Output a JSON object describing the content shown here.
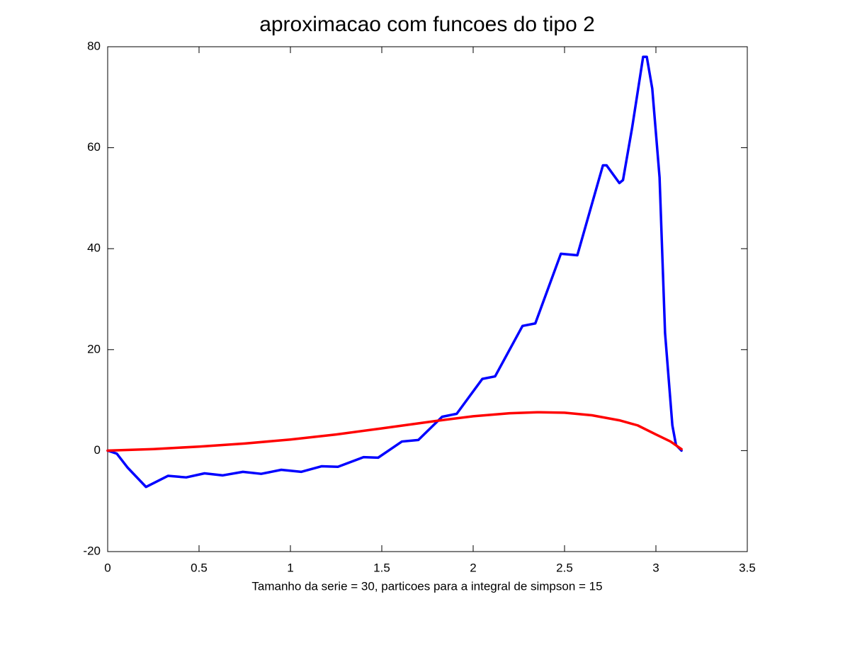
{
  "chart_data": {
    "type": "line",
    "title": "aproximacao com funcoes do tipo 2",
    "xlabel": "Tamanho da serie = 30, particoes para a integral de simpson = 15",
    "xlim": [
      0,
      3.5
    ],
    "xticks": [
      0,
      0.5,
      1,
      1.5,
      2,
      2.5,
      3,
      3.5
    ],
    "ylim": [
      -20,
      80
    ],
    "yticks": [
      -20,
      0,
      20,
      40,
      60,
      80
    ],
    "series": [
      {
        "color": "#0000ff",
        "x": [
          0,
          0.05,
          0.11,
          0.21,
          0.33,
          0.43,
          0.53,
          0.63,
          0.74,
          0.84,
          0.95,
          1.06,
          1.17,
          1.26,
          1.4,
          1.48,
          1.61,
          1.7,
          1.83,
          1.91,
          2.05,
          2.12,
          2.27,
          2.34,
          2.48,
          2.57,
          2.71,
          2.73,
          2.8,
          2.82,
          2.87,
          2.93,
          2.95,
          2.98,
          3.02,
          3.05,
          3.09,
          3.11,
          3.14
        ],
        "values": [
          0,
          -0.6,
          -3.4,
          -7.2,
          -5.0,
          -5.3,
          -4.5,
          -4.9,
          -4.2,
          -4.6,
          -3.8,
          -4.2,
          -3.1,
          -3.2,
          -1.3,
          -1.4,
          1.8,
          2.1,
          6.7,
          7.3,
          14.2,
          14.7,
          24.7,
          25.2,
          39.0,
          38.7,
          56.5,
          56.5,
          53.0,
          53.6,
          64.0,
          78.0,
          78.0,
          71.7,
          54.1,
          23.3,
          5.0,
          1.1,
          0
        ]
      },
      {
        "color": "#ff0000",
        "x": [
          0,
          0.25,
          0.5,
          0.75,
          1,
          1.25,
          1.5,
          1.8,
          2,
          2.2,
          2.35,
          2.5,
          2.65,
          2.8,
          2.9,
          3.0,
          3.08,
          3.14
        ],
        "values": [
          0,
          0.3,
          0.8,
          1.4,
          2.2,
          3.2,
          4.4,
          5.9,
          6.8,
          7.4,
          7.6,
          7.5,
          7.0,
          6.0,
          5.0,
          3.2,
          1.8,
          0.3
        ]
      }
    ]
  }
}
